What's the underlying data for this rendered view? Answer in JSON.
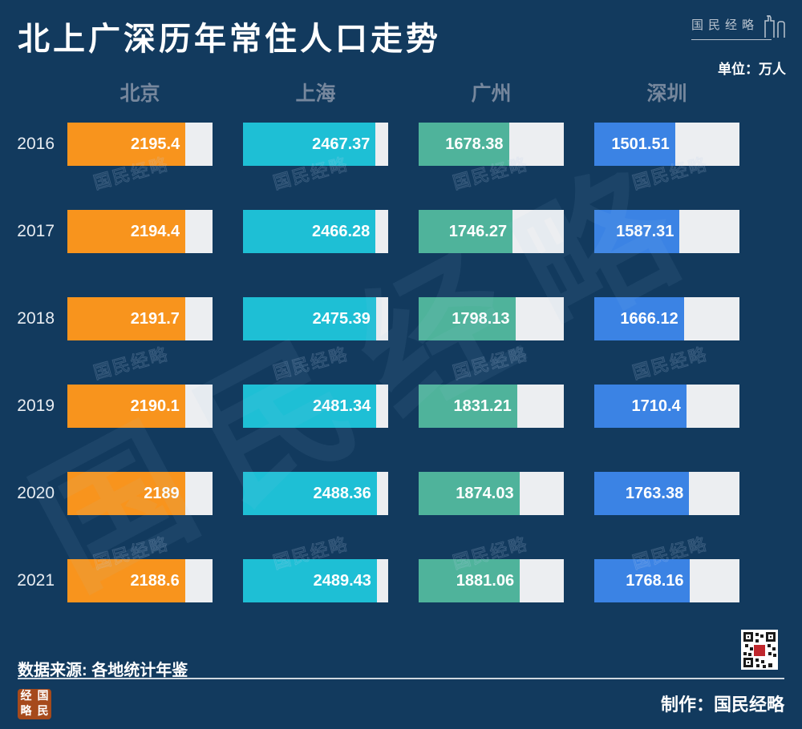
{
  "title": "北上广深历年常住人口走势",
  "brand": "国民经略",
  "unit_label": "单位：万人",
  "source_label": "数据来源: 各地统计年鉴",
  "credit_label": "制作：国民经略",
  "watermark_text": "国民经略",
  "seal_chars": [
    "经",
    "国",
    "略",
    "民"
  ],
  "colors": {
    "background": "#123a5e",
    "bar_track": "#eceef1",
    "beijing": "#f8941d",
    "shanghai": "#1ebfd5",
    "guangzhou": "#4fb39b",
    "shenzhen": "#3b83e4",
    "header_text": "#76879d",
    "title_text": "#ffffff"
  },
  "chart_data": {
    "type": "bar",
    "orientation": "horizontal",
    "title": "北上广深历年常住人口走势",
    "unit": "万人",
    "source": "各地统计年鉴",
    "categories": [
      "2016",
      "2017",
      "2018",
      "2019",
      "2020",
      "2021"
    ],
    "series": [
      {
        "name": "北京",
        "color": "#f8941d",
        "values": [
          2195.4,
          2194.4,
          2191.7,
          2190.1,
          2189,
          2188.6
        ]
      },
      {
        "name": "上海",
        "color": "#1ebfd5",
        "values": [
          2467.37,
          2466.28,
          2475.39,
          2481.34,
          2488.36,
          2489.43
        ]
      },
      {
        "name": "广州",
        "color": "#4fb39b",
        "values": [
          1678.38,
          1746.27,
          1798.13,
          1831.21,
          1874.03,
          1881.06
        ]
      },
      {
        "name": "深圳",
        "color": "#3b83e4",
        "values": [
          1501.51,
          1587.31,
          1666.12,
          1710.4,
          1763.38,
          1768.16
        ]
      }
    ],
    "xmax": 2700,
    "legend_position": "top",
    "grid": false
  }
}
